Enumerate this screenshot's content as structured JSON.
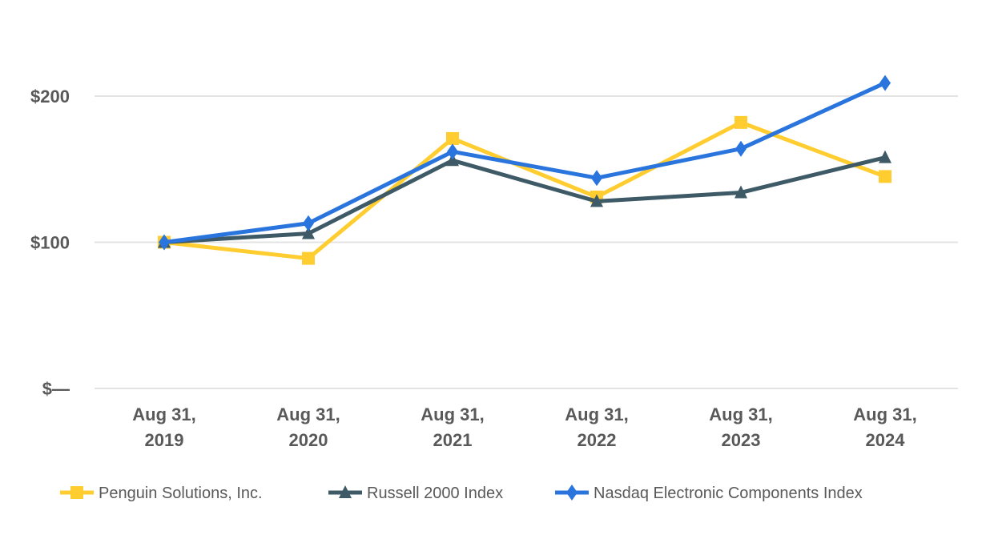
{
  "chart_data": {
    "type": "line",
    "categories": [
      [
        "Aug 31,",
        "2019"
      ],
      [
        "Aug 31,",
        "2020"
      ],
      [
        "Aug 31,",
        "2021"
      ],
      [
        "Aug 31,",
        "2022"
      ],
      [
        "Aug 31,",
        "2023"
      ],
      [
        "Aug 31,",
        "2024"
      ]
    ],
    "yticks": [
      {
        "value": 0,
        "label": "$—"
      },
      {
        "value": 100,
        "label": "$100"
      },
      {
        "value": 200,
        "label": "$200"
      }
    ],
    "ylim": [
      0,
      230
    ],
    "grid": true,
    "legend_position": "bottom",
    "series": [
      {
        "name": "Penguin Solutions, Inc.",
        "color": "#FFCD2F",
        "marker": "square",
        "values": [
          100,
          89,
          171,
          131,
          182,
          145
        ]
      },
      {
        "name": "Russell 2000 Index",
        "color": "#3D5A66",
        "marker": "triangle",
        "values": [
          100,
          106,
          156,
          128,
          134,
          158
        ]
      },
      {
        "name": "Nasdaq Electronic Components Index",
        "color": "#2A75DD",
        "marker": "diamond",
        "values": [
          100,
          113,
          162,
          144,
          164,
          209
        ]
      }
    ]
  }
}
